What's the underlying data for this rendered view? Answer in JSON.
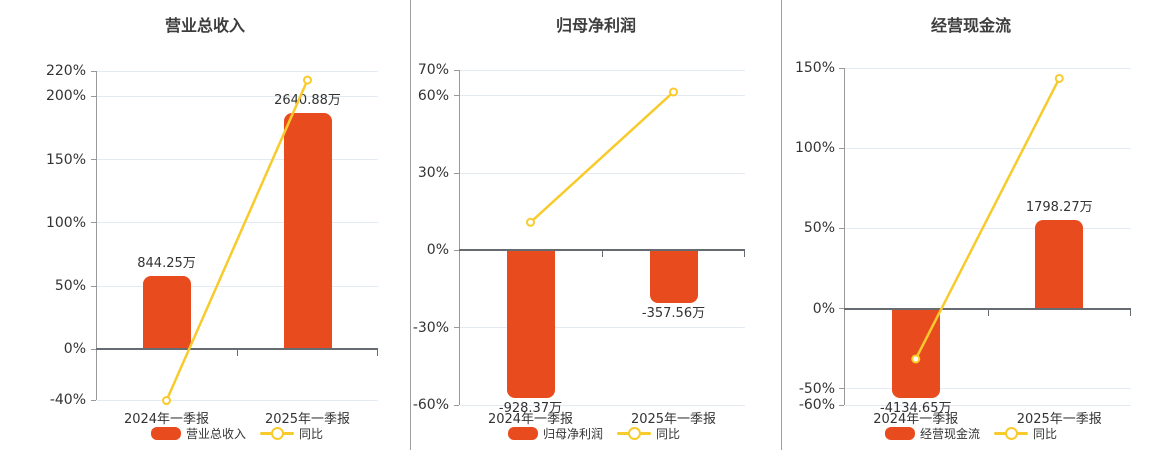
{
  "colors": {
    "bar": "#e84c1e",
    "line": "#f8cb2d",
    "grid": "#e4eaf3",
    "zero_axis": "#666b71",
    "axis_line": "#999999",
    "text": "#333333",
    "title": "#3d3d3d",
    "divider": "#9e9e9e"
  },
  "chart_data": [
    {
      "type": "bar",
      "title": "营业总收入",
      "bar_series": "营业总收入",
      "line_series": "同比",
      "categories": [
        "2024年一季报",
        "2025年一季报"
      ],
      "bar_values_wan": [
        844.25,
        2640.88
      ],
      "bar_labels": [
        "844.25万",
        "2640.88万"
      ],
      "yoy_pct": [
        -40.4,
        212.82
      ],
      "y_ticks_pct": [
        220,
        200,
        150,
        100,
        50,
        0,
        -40
      ],
      "ylim": [
        -40,
        220
      ],
      "bar_display_pct": [
        57.7,
        186.6
      ],
      "unit": "%",
      "grid": true,
      "legend_position": "bottom"
    },
    {
      "type": "bar",
      "title": "归母净利润",
      "bar_series": "归母净利润",
      "line_series": "同比",
      "categories": [
        "2024年一季报",
        "2025年一季报"
      ],
      "bar_values_wan": [
        -928.37,
        -357.56
      ],
      "bar_labels": [
        "-928.37万",
        "-357.56万"
      ],
      "yoy_pct": [
        10.9,
        61.48
      ],
      "y_ticks_pct": [
        70,
        60,
        30,
        0,
        -30,
        -60
      ],
      "ylim": [
        -60,
        70
      ],
      "bar_display_pct": [
        -57.4,
        -20.3
      ],
      "unit": "%",
      "grid": true,
      "legend_position": "bottom"
    },
    {
      "type": "bar",
      "title": "经营现金流",
      "bar_series": "经营现金流",
      "line_series": "同比",
      "categories": [
        "2024年一季报",
        "2025年一季报"
      ],
      "bar_values_wan": [
        -4134.65,
        1798.27
      ],
      "bar_labels": [
        "-4134.65万",
        "1798.27万"
      ],
      "yoy_pct": [
        -31.3,
        143.49
      ],
      "y_ticks_pct": [
        150,
        100,
        50,
        0,
        -50,
        -60
      ],
      "ylim": [
        -60,
        150
      ],
      "bar_display_pct": [
        -55.6,
        55.4
      ],
      "unit": "%",
      "grid": true,
      "legend_position": "bottom"
    }
  ]
}
